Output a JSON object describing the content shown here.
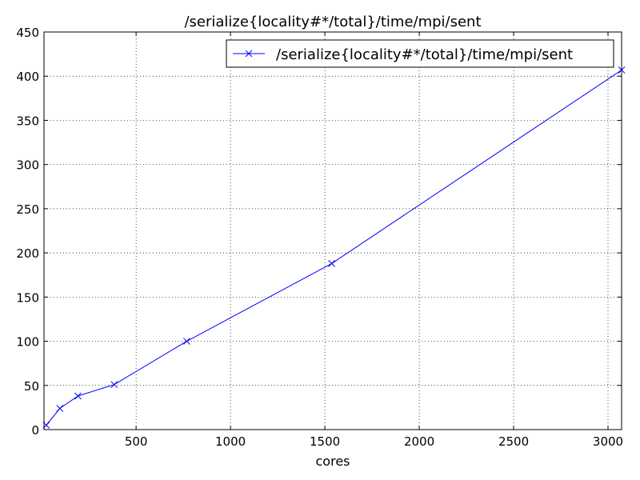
{
  "chart_data": {
    "type": "line",
    "title": "/serialize{locality#*/total}/time/mpi/sent",
    "xlabel": "cores",
    "ylabel": "",
    "xlim": [
      12,
      3072
    ],
    "ylim": [
      0,
      450
    ],
    "xticks": [
      500,
      1000,
      1500,
      2000,
      2500,
      3000
    ],
    "yticks": [
      0,
      50,
      100,
      150,
      200,
      250,
      300,
      350,
      400,
      450
    ],
    "grid": true,
    "legend_position": "top-right",
    "series": [
      {
        "name": "/serialize{locality#*/total}/time/mpi/sent",
        "color": "#0000ff",
        "marker": "x",
        "x": [
          24,
          96,
          192,
          384,
          768,
          1536,
          3072
        ],
        "y": [
          5,
          24,
          38,
          51,
          100,
          188,
          407
        ]
      }
    ]
  }
}
